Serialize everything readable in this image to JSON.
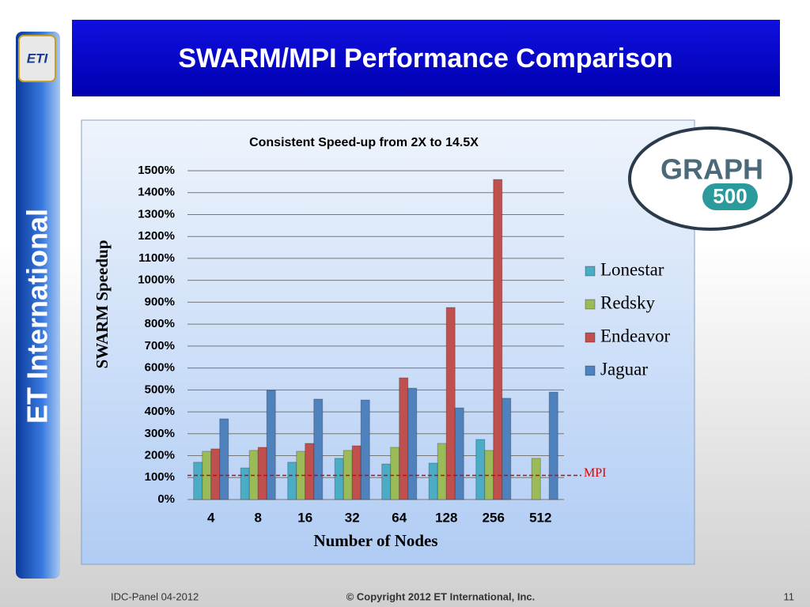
{
  "slide": {
    "title": "SWARM/MPI Performance Comparison",
    "sidebar_text": "ET International",
    "eti_logo": "ETI",
    "graph500_logo": {
      "word": "GRAPH",
      "number": "500"
    },
    "footer_left": "IDC-Panel 04-2012",
    "footer_center": "© Copyright 2012 ET International, Inc.",
    "page_number": "11"
  },
  "chart_data": {
    "type": "bar",
    "title": "Consistent Speed-up from 2X to 14.5X",
    "x_label": "Number of Nodes",
    "y_label": "SWARM Speedup",
    "categories": [
      "4",
      "8",
      "16",
      "32",
      "64",
      "128",
      "256",
      "512"
    ],
    "series": [
      {
        "name": "Lonestar",
        "color": "#4bacc6",
        "values": [
          170,
          144,
          170,
          188,
          162,
          166,
          274,
          null
        ]
      },
      {
        "name": "Redsky",
        "color": "#9bbb59",
        "values": [
          220,
          224,
          220,
          224,
          238,
          256,
          224,
          188
        ]
      },
      {
        "name": "Endeavor",
        "color": "#c0504d",
        "values": [
          231,
          238,
          256,
          245,
          555,
          876,
          1460,
          null
        ]
      },
      {
        "name": "Jaguar",
        "color": "#4f81bd",
        "values": [
          368,
          498,
          458,
          454,
          508,
          418,
          462,
          490
        ]
      }
    ],
    "ylim": [
      0,
      1500
    ],
    "yticks": [
      {
        "value": 0,
        "label": "0%"
      },
      {
        "value": 100,
        "label": "100%"
      },
      {
        "value": 200,
        "label": "200%"
      },
      {
        "value": 300,
        "label": "300%"
      },
      {
        "value": 400,
        "label": "400%"
      },
      {
        "value": 500,
        "label": "500%"
      },
      {
        "value": 600,
        "label": "600%"
      },
      {
        "value": 700,
        "label": "700%"
      },
      {
        "value": 800,
        "label": "800%"
      },
      {
        "value": 900,
        "label": "900%"
      },
      {
        "value": 1000,
        "label": "1000%"
      },
      {
        "value": 1100,
        "label": "1100%"
      },
      {
        "value": 1200,
        "label": "1200%"
      },
      {
        "value": 1300,
        "label": "1300%"
      },
      {
        "value": 1400,
        "label": "1400%"
      },
      {
        "value": 1500,
        "label": "1500%"
      }
    ],
    "grid": true,
    "legend": "right",
    "reference_line": {
      "label": "MPI",
      "value": 110,
      "color": "#e00000"
    }
  }
}
